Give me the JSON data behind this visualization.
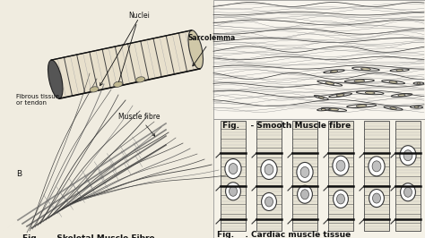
{
  "bg_color": "#f0ece0",
  "text_color": "#111111",
  "divider_color": "#999999",
  "font_size_label": 6.5,
  "font_size_annot": 5.5,
  "font_size_small": 5.0,
  "label_skeletal": "Fig.    - Skeletal Muscle Fibre",
  "label_smooth": "Fig.    - Smooth Muscle fibre",
  "label_cardiac": "Fig.    . Cardiac muscle tissue",
  "annot_nuclei": "Nuclei",
  "annot_sarco": "Sarcolemma",
  "annot_fibrous": "Fibrous tissue\nor tendon",
  "annot_muscle_fibre": "Muscle fibre",
  "annot_B": "B",
  "smooth_cells": [
    [
      0.57,
      0.92,
      0.12,
      0.025,
      5
    ],
    [
      0.7,
      0.89,
      0.14,
      0.028,
      -3
    ],
    [
      0.85,
      0.91,
      0.09,
      0.022,
      8
    ],
    [
      0.96,
      0.9,
      0.06,
      0.02,
      2
    ],
    [
      0.52,
      0.92,
      0.06,
      0.02,
      -5
    ],
    [
      0.6,
      0.8,
      0.11,
      0.024,
      -8
    ],
    [
      0.74,
      0.78,
      0.13,
      0.027,
      3
    ],
    [
      0.89,
      0.8,
      0.1,
      0.023,
      -5
    ],
    [
      0.55,
      0.7,
      0.12,
      0.025,
      10
    ],
    [
      0.69,
      0.68,
      0.14,
      0.027,
      -2
    ],
    [
      0.85,
      0.69,
      0.11,
      0.024,
      6
    ],
    [
      0.57,
      0.6,
      0.1,
      0.022,
      -6
    ],
    [
      0.72,
      0.58,
      0.13,
      0.026,
      4
    ],
    [
      0.88,
      0.59,
      0.09,
      0.022,
      -3
    ],
    [
      0.51,
      0.82,
      0.07,
      0.02,
      15
    ],
    [
      0.97,
      0.7,
      0.05,
      0.018,
      0
    ]
  ]
}
